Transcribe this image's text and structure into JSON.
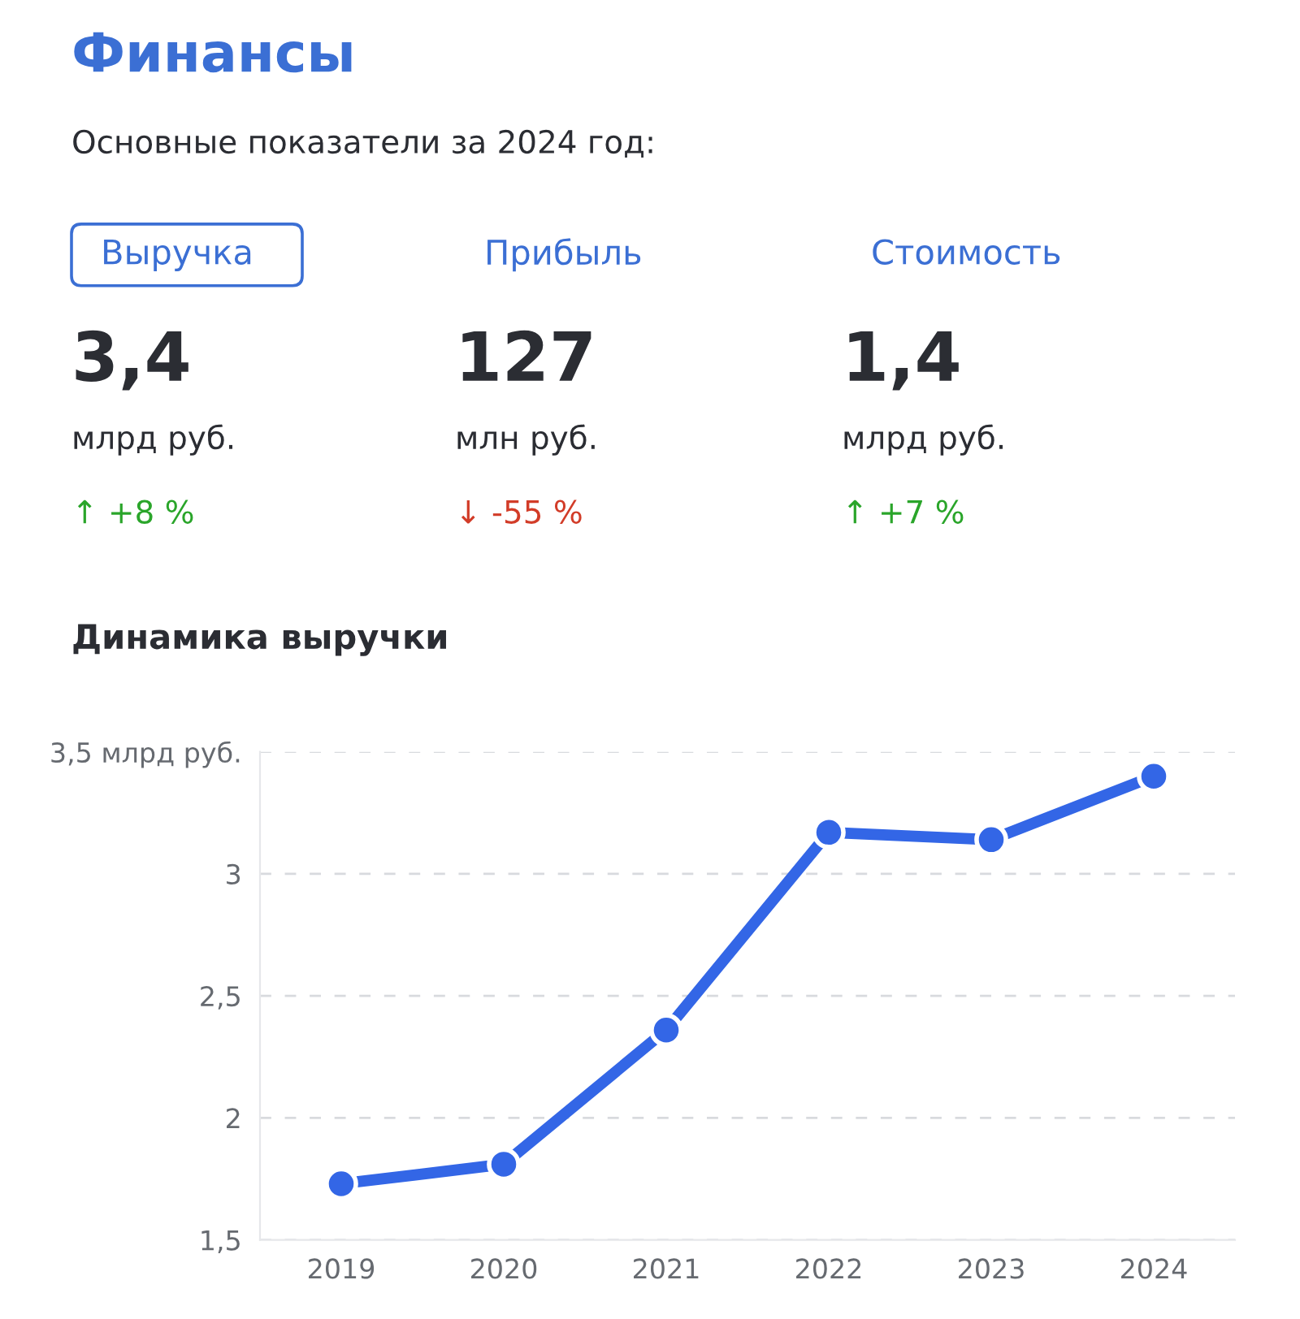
{
  "chart_data": [
    {
      "type": "other",
      "title": "Финансы",
      "subtitle": "Основные показатели за 2024 год:",
      "annotations": [
        "Выручка",
        "3,4",
        "млрд руб.",
        "↑ +8 %",
        "Прибыль",
        "127",
        "млн руб.",
        "↓ -55 %",
        "Стоимость",
        "1,4",
        "млрд руб.",
        "↑ +7 %"
      ],
      "colors": [
        "#3b6fd4",
        "#2b2d33",
        "#2b2d33",
        "#2aa52a",
        "#3b6fd4",
        "#2b2d33",
        "#2b2d33",
        "#d23c28",
        "#3b6fd4",
        "#2b2d33",
        "#2b2d33",
        "#2aa52a"
      ]
    },
    {
      "type": "line",
      "title": "Динамика выручки",
      "categories": [
        "2019",
        "2020",
        "2021",
        "2022",
        "2023",
        "2024"
      ],
      "series": [
        {
          "color": "#3366e6",
          "values": [
            1.73,
            1.81,
            2.36,
            3.17,
            3.14,
            3.4
          ]
        }
      ],
      "ylim": [
        1.5,
        3.5
      ],
      "yticks": [
        {
          "value": 1.5,
          "label": "1,5"
        },
        {
          "value": 2,
          "label": "2"
        },
        {
          "value": 2.5,
          "label": "2,5"
        },
        {
          "value": 3,
          "label": "3"
        },
        {
          "value": 3.5,
          "label": "3,5 млрд руб."
        }
      ],
      "grid": "y",
      "marker": "circle",
      "line_style": "solid"
    }
  ]
}
